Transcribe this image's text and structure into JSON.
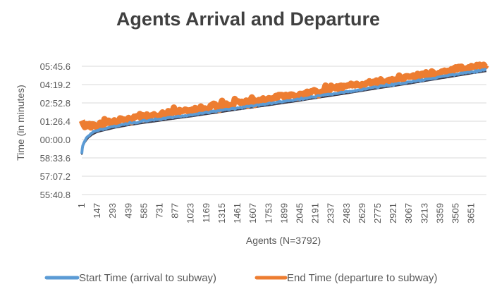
{
  "chart_data": {
    "type": "line",
    "title": "Agents Arrival and Departure",
    "xlabel": "Agents (N=3792)",
    "ylabel": "Time (in minutes)",
    "x_range": [
      1,
      3792
    ],
    "x_tick_labels": [
      "1",
      "147",
      "293",
      "439",
      "585",
      "731",
      "877",
      "1023",
      "1169",
      "1315",
      "1461",
      "1607",
      "1753",
      "1899",
      "2045",
      "2191",
      "2337",
      "2483",
      "2629",
      "2775",
      "2921",
      "3067",
      "3213",
      "3359",
      "3505",
      "3651"
    ],
    "y_tick_labels": [
      "55:40.8",
      "57:07.2",
      "58:33.6",
      "00:00.0",
      "01:26.4",
      "02:52.8",
      "04:19.2",
      "05:45.6"
    ],
    "grid": true,
    "legend_position": "bottom",
    "colors": {
      "start": "#5b9bd5",
      "end": "#ed7d31",
      "title": "#404040",
      "grid": "#d9d9d9"
    },
    "series": [
      {
        "name": "Start Time (arrival to subway)",
        "points": [
          [
            1,
            58.95
          ],
          [
            10,
            59.55
          ],
          [
            30,
            59.9
          ],
          [
            60,
            0.25
          ],
          [
            100,
            0.52
          ],
          [
            147,
            0.72
          ],
          [
            293,
            1.02
          ],
          [
            439,
            1.25
          ],
          [
            585,
            1.44
          ],
          [
            731,
            1.6
          ],
          [
            877,
            1.78
          ],
          [
            1023,
            1.94
          ],
          [
            1169,
            2.12
          ],
          [
            1315,
            2.3
          ],
          [
            1461,
            2.48
          ],
          [
            1607,
            2.65
          ],
          [
            1753,
            2.82
          ],
          [
            1899,
            3.0
          ],
          [
            2045,
            3.18
          ],
          [
            2191,
            3.38
          ],
          [
            2337,
            3.56
          ],
          [
            2483,
            3.75
          ],
          [
            2629,
            3.95
          ],
          [
            2775,
            4.15
          ],
          [
            2921,
            4.33
          ],
          [
            3067,
            4.52
          ],
          [
            3213,
            4.72
          ],
          [
            3359,
            4.92
          ],
          [
            3505,
            5.12
          ],
          [
            3651,
            5.32
          ],
          [
            3792,
            5.5
          ]
        ]
      },
      {
        "name": "End Time (departure to subway)",
        "points": [
          [
            1,
            1.5
          ],
          [
            30,
            1.05
          ],
          [
            100,
            1.1
          ],
          [
            147,
            1.15
          ],
          [
            293,
            1.42
          ],
          [
            439,
            1.62
          ],
          [
            585,
            1.8
          ],
          [
            731,
            1.98
          ],
          [
            877,
            2.18
          ],
          [
            1023,
            2.35
          ],
          [
            1169,
            2.52
          ],
          [
            1315,
            2.7
          ],
          [
            1461,
            2.88
          ],
          [
            1607,
            3.05
          ],
          [
            1753,
            3.22
          ],
          [
            1899,
            3.4
          ],
          [
            2045,
            3.58
          ],
          [
            2191,
            3.78
          ],
          [
            2337,
            3.96
          ],
          [
            2483,
            4.15
          ],
          [
            2629,
            4.35
          ],
          [
            2775,
            4.55
          ],
          [
            2921,
            4.73
          ],
          [
            3067,
            4.92
          ],
          [
            3213,
            5.12
          ],
          [
            3359,
            5.32
          ],
          [
            3505,
            5.52
          ],
          [
            3651,
            5.7
          ],
          [
            3792,
            5.88
          ]
        ]
      }
    ]
  }
}
